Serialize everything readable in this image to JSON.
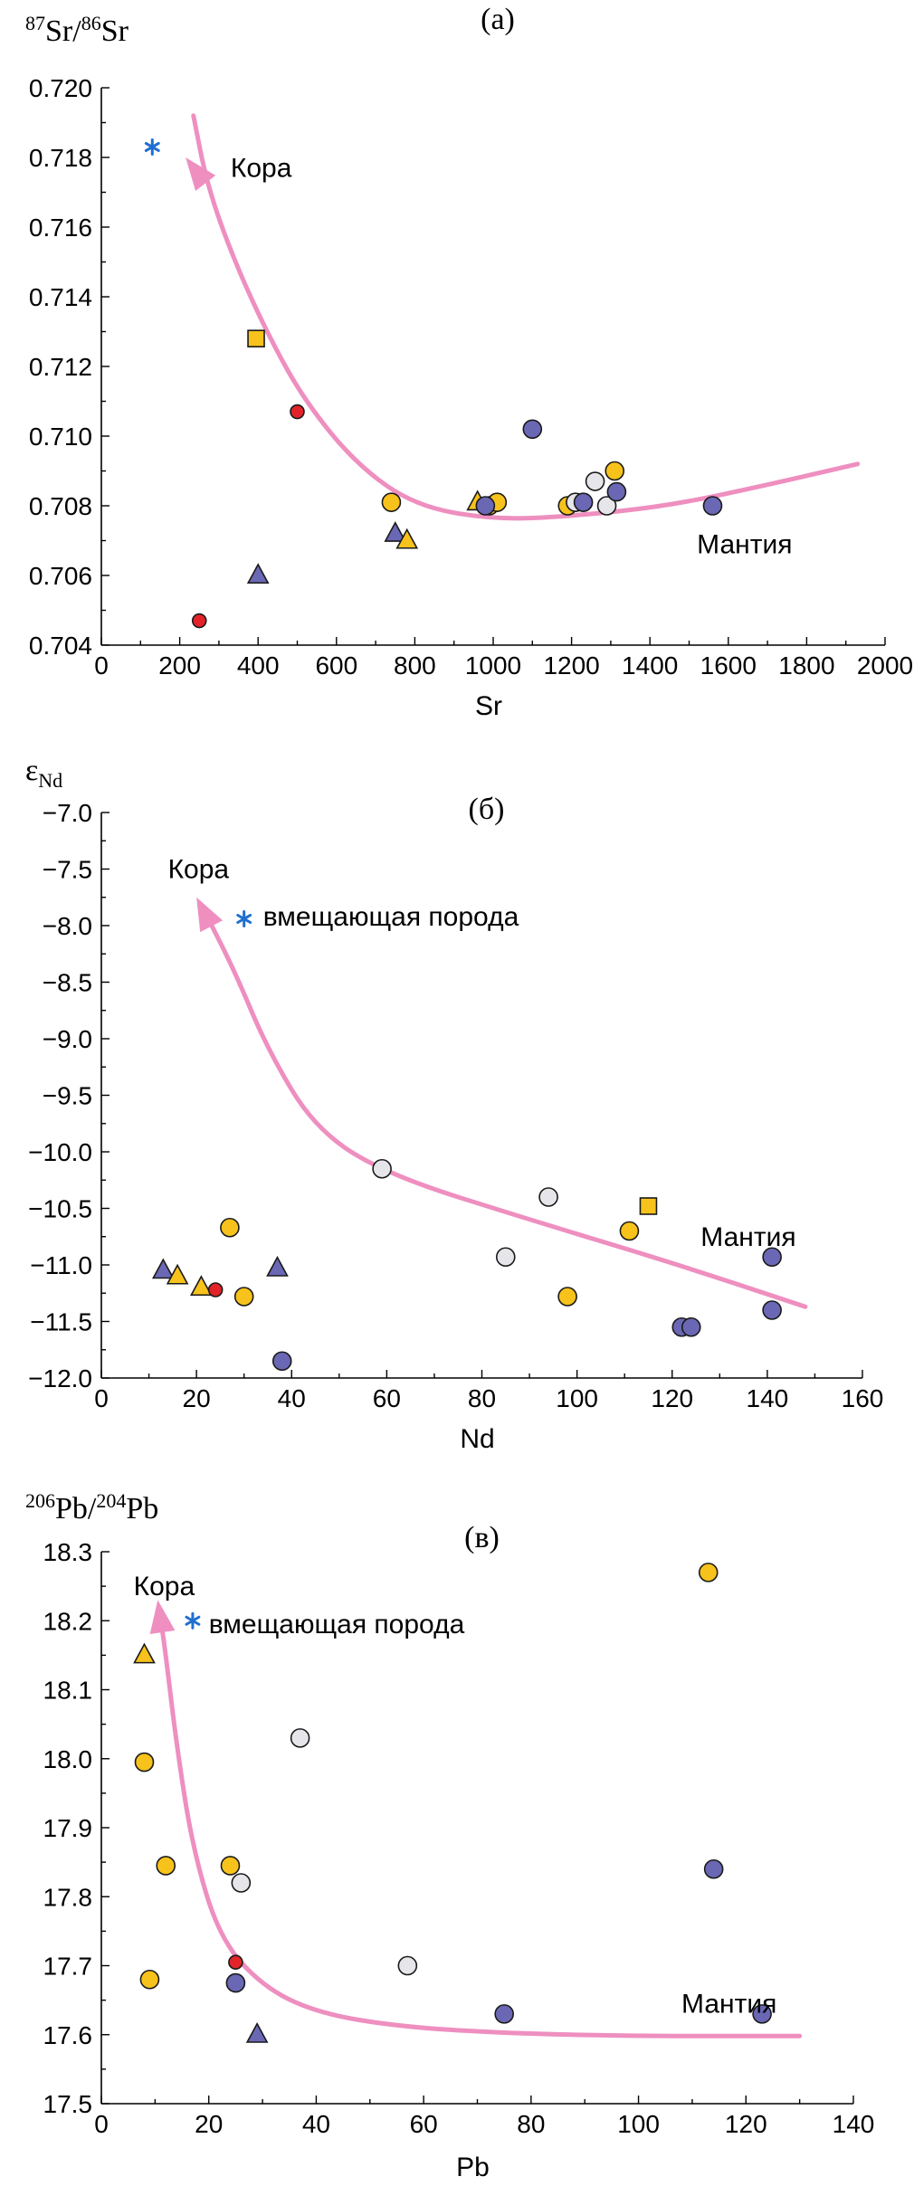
{
  "colors": {
    "yellow": "#f7c21b",
    "blue": "#6a68b4",
    "red": "#e2242a",
    "white": "#e6e6ea",
    "star": "#1f6fd1",
    "trend": "#ee8fc0"
  },
  "chart_data": [
    {
      "type": "scatter",
      "panel_label": "(а)",
      "ylabel_prefix": "87",
      "ylabel_mid": "Sr/",
      "ylabel_sup2": "86",
      "ylabel_suffix": "Sr",
      "xlabel": "Sr",
      "xlim": [
        0,
        2000
      ],
      "ylim": [
        0.704,
        0.72
      ],
      "xticks": [
        0,
        200,
        400,
        600,
        800,
        1000,
        1200,
        1400,
        1600,
        1800,
        2000
      ],
      "yticks": [
        0.704,
        0.706,
        0.708,
        0.71,
        0.712,
        0.714,
        0.716,
        0.718,
        0.72
      ],
      "ytick_labels": [
        "0.704",
        "0.706",
        "0.708",
        "0.710",
        "0.712",
        "0.714",
        "0.716",
        "0.718",
        "0.720"
      ],
      "annotations": [
        {
          "text": "Кора",
          "x": 330,
          "y": 0.7177
        },
        {
          "text": "Мантия",
          "x": 1520,
          "y": 0.7069
        }
      ],
      "points": [
        {
          "x": 130,
          "y": 0.7183,
          "marker": "star",
          "color": "star"
        },
        {
          "x": 395,
          "y": 0.7128,
          "marker": "square",
          "color": "yellow"
        },
        {
          "x": 500,
          "y": 0.7107,
          "marker": "circle-small",
          "color": "red"
        },
        {
          "x": 250,
          "y": 0.7047,
          "marker": "circle-small",
          "color": "red"
        },
        {
          "x": 400,
          "y": 0.706,
          "marker": "triangle",
          "color": "blue"
        },
        {
          "x": 740,
          "y": 0.7081,
          "marker": "circle",
          "color": "yellow"
        },
        {
          "x": 750,
          "y": 0.7072,
          "marker": "triangle",
          "color": "blue"
        },
        {
          "x": 780,
          "y": 0.707,
          "marker": "triangle",
          "color": "yellow"
        },
        {
          "x": 960,
          "y": 0.7081,
          "marker": "triangle",
          "color": "yellow"
        },
        {
          "x": 990,
          "y": 0.708,
          "marker": "circle",
          "color": "yellow"
        },
        {
          "x": 1010,
          "y": 0.7081,
          "marker": "circle",
          "color": "yellow"
        },
        {
          "x": 980,
          "y": 0.708,
          "marker": "circle",
          "color": "blue"
        },
        {
          "x": 1100,
          "y": 0.7102,
          "marker": "circle",
          "color": "blue"
        },
        {
          "x": 1190,
          "y": 0.708,
          "marker": "circle",
          "color": "yellow"
        },
        {
          "x": 1210,
          "y": 0.7081,
          "marker": "circle",
          "color": "white"
        },
        {
          "x": 1230,
          "y": 0.7081,
          "marker": "circle",
          "color": "blue"
        },
        {
          "x": 1260,
          "y": 0.7087,
          "marker": "circle",
          "color": "white"
        },
        {
          "x": 1290,
          "y": 0.708,
          "marker": "circle",
          "color": "white"
        },
        {
          "x": 1310,
          "y": 0.709,
          "marker": "circle",
          "color": "yellow"
        },
        {
          "x": 1315,
          "y": 0.7084,
          "marker": "circle",
          "color": "blue"
        },
        {
          "x": 1560,
          "y": 0.708,
          "marker": "circle",
          "color": "blue"
        }
      ],
      "trend": {
        "points": [
          [
            1930,
            0.7092
          ],
          [
            1700,
            0.7086
          ],
          [
            1450,
            0.708
          ],
          [
            1200,
            0.7077
          ],
          [
            1000,
            0.7076
          ],
          [
            800,
            0.708
          ],
          [
            650,
            0.7092
          ],
          [
            520,
            0.711
          ],
          [
            430,
            0.7128
          ],
          [
            340,
            0.715
          ],
          [
            270,
            0.7172
          ],
          [
            235,
            0.7192
          ]
        ],
        "arrow_to": [
          215,
          0.718
        ]
      }
    },
    {
      "type": "scatter",
      "panel_label": "(б)",
      "ylabel_main": "ε",
      "ylabel_sub": "Nd",
      "xlabel": "Nd",
      "xlim": [
        0,
        160
      ],
      "ylim": [
        -12.0,
        -7.0
      ],
      "xticks": [
        0,
        20,
        40,
        60,
        80,
        100,
        120,
        140,
        160
      ],
      "yticks": [
        -12.0,
        -11.5,
        -11.0,
        -10.5,
        -10.0,
        -9.5,
        -9.0,
        -8.5,
        -8.0,
        -7.5,
        -7.0
      ],
      "ytick_labels": [
        "−12.0",
        "−11.5",
        "−11.0",
        "−10.5",
        "−10.0",
        "−9.5",
        "−9.0",
        "−8.5",
        "−8.0",
        "−7.5",
        "−7.0"
      ],
      "annotations": [
        {
          "text": "Кора",
          "x": 14,
          "y": -7.5
        },
        {
          "text": "вмещающая порода",
          "x": 34,
          "y": -7.92
        },
        {
          "text": "Мантия",
          "x": 126,
          "y": -10.75
        }
      ],
      "points": [
        {
          "x": 30,
          "y": -7.94,
          "marker": "star",
          "color": "star"
        },
        {
          "x": 13,
          "y": -11.05,
          "marker": "triangle",
          "color": "blue"
        },
        {
          "x": 16,
          "y": -11.1,
          "marker": "triangle",
          "color": "yellow"
        },
        {
          "x": 21,
          "y": -11.2,
          "marker": "triangle",
          "color": "yellow"
        },
        {
          "x": 24,
          "y": -11.22,
          "marker": "circle-small",
          "color": "red"
        },
        {
          "x": 27,
          "y": -10.67,
          "marker": "circle",
          "color": "yellow"
        },
        {
          "x": 30,
          "y": -11.28,
          "marker": "circle",
          "color": "yellow"
        },
        {
          "x": 37,
          "y": -11.03,
          "marker": "triangle",
          "color": "blue"
        },
        {
          "x": 38,
          "y": -11.85,
          "marker": "circle",
          "color": "blue"
        },
        {
          "x": 59,
          "y": -10.15,
          "marker": "circle",
          "color": "white"
        },
        {
          "x": 85,
          "y": -10.93,
          "marker": "circle",
          "color": "white"
        },
        {
          "x": 94,
          "y": -10.4,
          "marker": "circle",
          "color": "white"
        },
        {
          "x": 98,
          "y": -11.28,
          "marker": "circle",
          "color": "yellow"
        },
        {
          "x": 111,
          "y": -10.7,
          "marker": "circle",
          "color": "yellow"
        },
        {
          "x": 115,
          "y": -10.48,
          "marker": "square",
          "color": "yellow"
        },
        {
          "x": 122,
          "y": -11.55,
          "marker": "circle",
          "color": "blue"
        },
        {
          "x": 124,
          "y": -11.55,
          "marker": "circle",
          "color": "blue"
        },
        {
          "x": 141,
          "y": -11.4,
          "marker": "circle",
          "color": "blue"
        },
        {
          "x": 141,
          "y": -10.93,
          "marker": "circle",
          "color": "blue"
        }
      ],
      "trend": {
        "points": [
          [
            148,
            -11.37
          ],
          [
            120,
            -10.98
          ],
          [
            90,
            -10.6
          ],
          [
            60,
            -10.2
          ],
          [
            45,
            -9.8
          ],
          [
            35,
            -9.1
          ],
          [
            28,
            -8.4
          ],
          [
            22,
            -7.9
          ]
        ],
        "arrow_to": [
          20,
          -7.75
        ]
      }
    },
    {
      "type": "scatter",
      "panel_label": "(в)",
      "ylabel_prefix": "206",
      "ylabel_mid": "Pb/",
      "ylabel_sup2": "204",
      "ylabel_suffix": "Pb",
      "xlabel": "Pb",
      "xlim": [
        0,
        140
      ],
      "ylim": [
        17.5,
        18.3
      ],
      "xticks": [
        0,
        20,
        40,
        60,
        80,
        100,
        120,
        140
      ],
      "yticks": [
        17.5,
        17.6,
        17.7,
        17.8,
        17.9,
        18.0,
        18.1,
        18.2,
        18.3
      ],
      "ytick_labels": [
        "17.5",
        "17.6",
        "17.7",
        "17.8",
        "17.9",
        "18.0",
        "18.1",
        "18.2",
        "18.3"
      ],
      "annotations": [
        {
          "text": "Кора",
          "x": 6,
          "y": 18.25
        },
        {
          "text": "вмещающая порода",
          "x": 20,
          "y": 18.195
        },
        {
          "text": "Мантия",
          "x": 108,
          "y": 17.645
        }
      ],
      "points": [
        {
          "x": 17,
          "y": 18.2,
          "marker": "star",
          "color": "star"
        },
        {
          "x": 8,
          "y": 18.15,
          "marker": "triangle",
          "color": "yellow"
        },
        {
          "x": 8,
          "y": 17.995,
          "marker": "circle",
          "color": "yellow"
        },
        {
          "x": 9,
          "y": 17.68,
          "marker": "circle",
          "color": "yellow"
        },
        {
          "x": 12,
          "y": 17.845,
          "marker": "circle",
          "color": "yellow"
        },
        {
          "x": 24,
          "y": 17.845,
          "marker": "circle",
          "color": "yellow"
        },
        {
          "x": 26,
          "y": 17.82,
          "marker": "circle",
          "color": "white"
        },
        {
          "x": 25,
          "y": 17.705,
          "marker": "circle-small",
          "color": "red"
        },
        {
          "x": 25,
          "y": 17.675,
          "marker": "circle",
          "color": "blue"
        },
        {
          "x": 29,
          "y": 17.6,
          "marker": "triangle",
          "color": "blue"
        },
        {
          "x": 37,
          "y": 18.03,
          "marker": "circle",
          "color": "white"
        },
        {
          "x": 57,
          "y": 17.7,
          "marker": "circle",
          "color": "white"
        },
        {
          "x": 75,
          "y": 17.63,
          "marker": "circle",
          "color": "blue"
        },
        {
          "x": 113,
          "y": 18.27,
          "marker": "circle",
          "color": "yellow"
        },
        {
          "x": 114,
          "y": 17.84,
          "marker": "circle",
          "color": "blue"
        },
        {
          "x": 123,
          "y": 17.63,
          "marker": "circle",
          "color": "blue"
        }
      ],
      "trend": {
        "points": [
          [
            130,
            17.598
          ],
          [
            100,
            17.598
          ],
          [
            75,
            17.602
          ],
          [
            55,
            17.612
          ],
          [
            40,
            17.632
          ],
          [
            30,
            17.67
          ],
          [
            22,
            17.74
          ],
          [
            17,
            17.87
          ],
          [
            14,
            18.02
          ],
          [
            12,
            18.15
          ],
          [
            11,
            18.205
          ]
        ],
        "arrow_to": [
          10.5,
          18.23
        ]
      }
    }
  ]
}
